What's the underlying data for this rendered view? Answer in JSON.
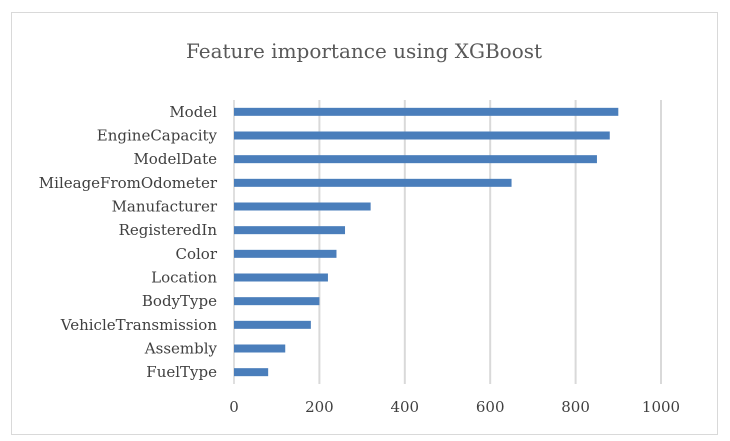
{
  "chart_data": {
    "type": "bar",
    "orientation": "horizontal",
    "title": "Feature importance using XGBoost",
    "xlabel": "",
    "ylabel": "",
    "categories": [
      "Model",
      "EngineCapacity",
      "ModelDate",
      "MileageFromOdometer",
      "Manufacturer",
      "RegisteredIn",
      "Color",
      "Location",
      "BodyType",
      "VehicleTransmission",
      "Assembly",
      "FuelType"
    ],
    "values": [
      900,
      880,
      850,
      650,
      320,
      260,
      240,
      220,
      200,
      180,
      120,
      80
    ],
    "xlim": [
      0,
      1000
    ],
    "ticks": [
      "0",
      "200",
      "400",
      "600",
      "800",
      "1000"
    ],
    "grid": true,
    "legend": "none",
    "bar_color": "#4a7ebb"
  }
}
